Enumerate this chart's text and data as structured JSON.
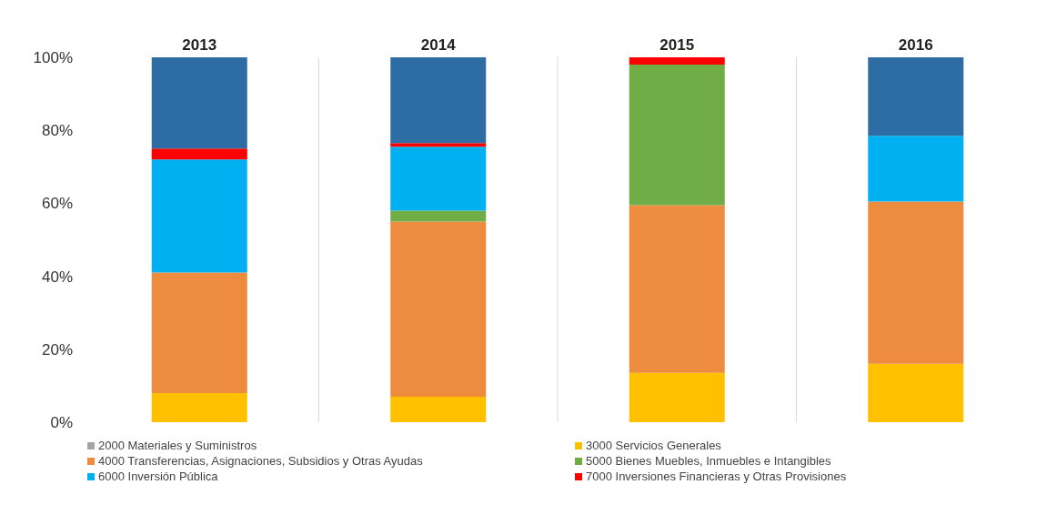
{
  "chart_data": {
    "type": "bar",
    "stacked": true,
    "categories": [
      "2013",
      "2014",
      "2015",
      "2016"
    ],
    "series": [
      {
        "name": "2000 Materiales y Suministros",
        "color": "#a5a5a5",
        "values": [
          0,
          0,
          0,
          0
        ]
      },
      {
        "name": "3000 Servicios Generales",
        "color": "#ffc000",
        "values": [
          8,
          7,
          13.5,
          16
        ]
      },
      {
        "name": "4000 Transferencias, Asignaciones, Subsidios y Otras Ayudas",
        "color": "#ed8b3f",
        "values": [
          33,
          48,
          46,
          44.5
        ]
      },
      {
        "name": "5000 Bienes Muebles, Inmuebles e Intangibles",
        "color": "#70ad47",
        "values": [
          0,
          3,
          38.5,
          0
        ]
      },
      {
        "name": "6000 Inversión Pública",
        "color": "#00b0f0",
        "values": [
          31,
          17.5,
          0,
          18
        ]
      },
      {
        "name": "7000 Inversiones Financieras y Otras Provisiones",
        "color": "#ff0000",
        "values": [
          3,
          1,
          2,
          0
        ]
      },
      {
        "color": "#2e6da4",
        "values": [
          25,
          23.5,
          0,
          21.5
        ]
      }
    ],
    "ylim": [
      0,
      100
    ],
    "yticks": [
      {
        "value": 0,
        "label": "0%"
      },
      {
        "value": 20,
        "label": "20%"
      },
      {
        "value": 40,
        "label": "40%"
      },
      {
        "value": 60,
        "label": "60%"
      },
      {
        "value": 80,
        "label": "80%"
      },
      {
        "value": 100,
        "label": "100%"
      }
    ],
    "grid": "x",
    "legend": "bottom"
  }
}
